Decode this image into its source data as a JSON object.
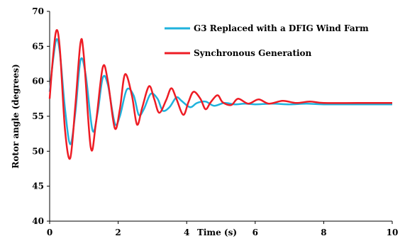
{
  "chart_data": {
    "type": "line",
    "xlabel": "Time (s)",
    "ylabel": "Rotor angle (degrees)",
    "xlim": [
      0,
      10
    ],
    "ylim": [
      40,
      70
    ],
    "xticks": [
      0,
      2,
      4,
      6,
      8,
      10
    ],
    "yticks": [
      40,
      45,
      50,
      55,
      60,
      65,
      70
    ],
    "xtick_labels": [
      "0",
      "2",
      "4",
      "6",
      "8",
      "10"
    ],
    "ytick_labels": [
      "40",
      "45",
      "50",
      "55",
      "60",
      "65",
      "70"
    ],
    "grid": false,
    "legend_position": "top-right",
    "series": [
      {
        "name": "G3 Replaced with a DFIG Wind Farm",
        "color": "#1fb2dc",
        "x": [
          0.0,
          0.1,
          0.2,
          0.3,
          0.45,
          0.6,
          0.75,
          0.9,
          1.05,
          1.25,
          1.4,
          1.55,
          1.7,
          1.9,
          2.05,
          2.25,
          2.45,
          2.6,
          2.75,
          2.95,
          3.15,
          3.3,
          3.5,
          3.7,
          3.85,
          4.1,
          4.3,
          4.55,
          4.8,
          5.1,
          5.4,
          5.7,
          6.0,
          6.5,
          7.0,
          7.5,
          8.0,
          9.0,
          10.0
        ],
        "y": [
          58.5,
          63.0,
          66.0,
          64.0,
          56.0,
          51.0,
          55.5,
          63.0,
          61.0,
          53.0,
          55.5,
          60.5,
          59.5,
          54.0,
          55.0,
          58.8,
          58.0,
          55.2,
          56.0,
          58.2,
          57.5,
          55.8,
          56.3,
          57.7,
          57.2,
          56.3,
          56.9,
          57.1,
          56.5,
          56.9,
          56.7,
          56.8,
          56.7,
          56.8,
          56.7,
          56.8,
          56.7,
          56.7,
          56.7
        ]
      },
      {
        "name": "Synchronous Generation",
        "color": "#ee1c24",
        "x": [
          0.0,
          0.1,
          0.2,
          0.3,
          0.45,
          0.6,
          0.75,
          0.9,
          1.0,
          1.2,
          1.35,
          1.55,
          1.7,
          1.9,
          2.05,
          2.2,
          2.4,
          2.55,
          2.7,
          2.9,
          3.05,
          3.2,
          3.4,
          3.55,
          3.7,
          3.9,
          4.05,
          4.2,
          4.4,
          4.55,
          4.7,
          4.9,
          5.05,
          5.3,
          5.5,
          5.8,
          6.1,
          6.4,
          6.8,
          7.2,
          7.6,
          8.0,
          9.0,
          10.0
        ],
        "y": [
          57.5,
          63.5,
          67.3,
          64.5,
          53.0,
          49.0,
          56.5,
          65.5,
          63.5,
          50.5,
          54.0,
          62.0,
          60.0,
          53.3,
          56.0,
          61.0,
          58.0,
          53.8,
          56.2,
          59.3,
          57.5,
          55.5,
          57.3,
          59.0,
          57.5,
          55.2,
          57.0,
          58.5,
          57.5,
          56.0,
          57.0,
          58.0,
          57.0,
          56.6,
          57.5,
          56.8,
          57.4,
          56.8,
          57.2,
          56.9,
          57.1,
          56.9,
          56.9,
          56.9
        ]
      }
    ]
  }
}
